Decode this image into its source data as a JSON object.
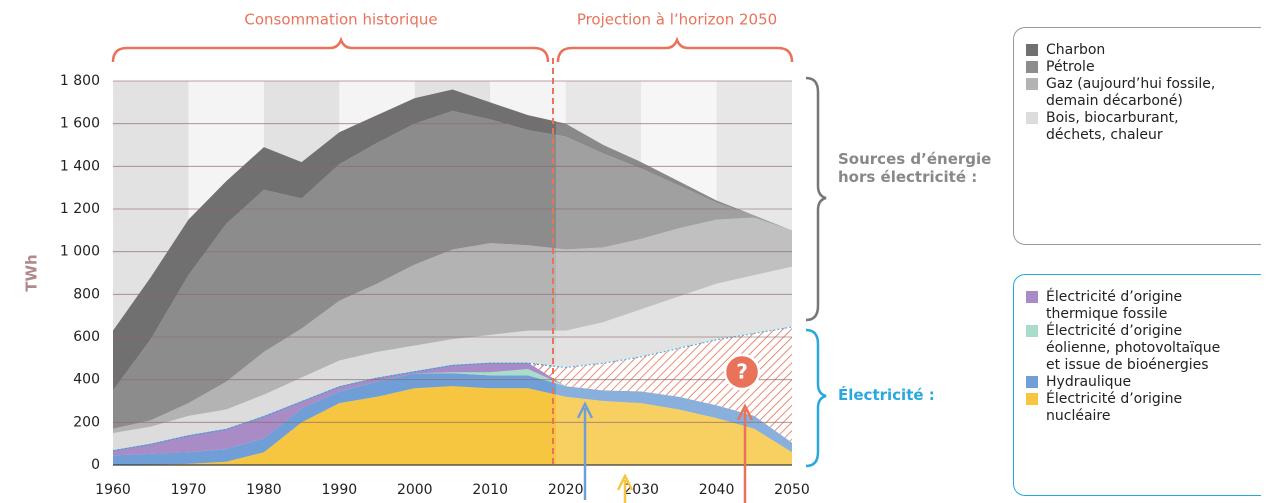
{
  "chart_data": {
    "type": "area",
    "x": [
      1960,
      1965,
      1970,
      1975,
      1980,
      1985,
      1990,
      1995,
      2000,
      2005,
      2010,
      2015,
      2020,
      2025,
      2030,
      2035,
      2040,
      2045,
      2050
    ],
    "series": [
      {
        "name": "Électricité d’origine nucléaire",
        "color": "#f7c640",
        "values": [
          0,
          2,
          5,
          15,
          60,
          200,
          290,
          320,
          360,
          370,
          360,
          360,
          320,
          300,
          290,
          260,
          220,
          170,
          60
        ]
      },
      {
        "name": "Hydraulique",
        "color": "#6f9fd6",
        "values": [
          45,
          50,
          55,
          60,
          65,
          65,
          55,
          70,
          70,
          60,
          60,
          60,
          50,
          50,
          55,
          60,
          60,
          60,
          45
        ]
      },
      {
        "name": "Électricité d’origine éolienne, photovoltaïque et issue de bioénergies",
        "color": "#a8dccb",
        "values": [
          0,
          0,
          0,
          0,
          0,
          0,
          0,
          0,
          0,
          5,
          15,
          30,
          0,
          0,
          0,
          0,
          0,
          0,
          0
        ]
      },
      {
        "name": "Électricité d’origine thermique fossile",
        "color": "#a98bc6",
        "values": [
          25,
          48,
          80,
          95,
          105,
          35,
          25,
          20,
          10,
          35,
          45,
          30,
          0,
          0,
          0,
          0,
          0,
          0,
          0
        ]
      },
      {
        "name": "?",
        "color": "#e8735a",
        "values": [
          0,
          0,
          0,
          0,
          0,
          0,
          0,
          0,
          0,
          0,
          0,
          0,
          90,
          130,
          165,
          230,
          310,
          390,
          545
        ]
      },
      {
        "name": "Bois, biocarburant, déchets, chaleur",
        "color": "#dcdcdc",
        "values": [
          80,
          80,
          90,
          90,
          100,
          110,
          120,
          120,
          120,
          120,
          130,
          150,
          170,
          190,
          220,
          240,
          260,
          270,
          280
        ]
      },
      {
        "name": "Gaz (aujourd’hui fossile, demain décarboné)",
        "color": "#b3b3b3",
        "values": [
          20,
          30,
          60,
          130,
          200,
          230,
          280,
          320,
          380,
          420,
          430,
          400,
          380,
          350,
          330,
          320,
          300,
          270,
          170
        ]
      },
      {
        "name": "Pétrole",
        "color": "#8c8c8c",
        "values": [
          180,
          380,
          600,
          740,
          760,
          610,
          640,
          660,
          660,
          650,
          580,
          540,
          530,
          440,
          330,
          200,
          80,
          10,
          0
        ]
      },
      {
        "name": "Charbon",
        "color": "#707070",
        "values": [
          280,
          290,
          260,
          200,
          200,
          170,
          150,
          130,
          120,
          100,
          80,
          70,
          60,
          40,
          30,
          20,
          10,
          0,
          0
        ]
      }
    ],
    "xlim": [
      1960,
      2050
    ],
    "ylim": [
      0,
      1800
    ],
    "xticks": [
      1960,
      1970,
      1980,
      1990,
      2000,
      2010,
      2020,
      2030,
      2040,
      2050
    ],
    "yticks": [
      0,
      200,
      400,
      600,
      800,
      {
        "value": 1000,
        "label": "1 000"
      },
      {
        "value": 1200,
        "label": "1 200"
      },
      {
        "value": 1400,
        "label": "1 400"
      },
      {
        "value": 1600,
        "label": "1 600"
      },
      {
        "value": 1800,
        "label": "1 800"
      }
    ],
    "grid": true,
    "y_label": "TWh",
    "annotations": {
      "historical": "Consommation historique",
      "projection": "Projection à l’horizon 2050",
      "non_electric": "Sources d’énergie hors électricité :",
      "electric": "Électricité :"
    }
  }
}
